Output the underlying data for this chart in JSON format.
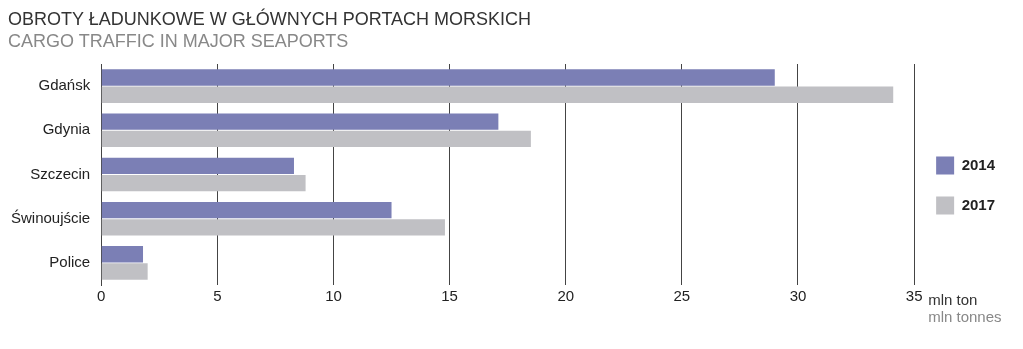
{
  "chart_data": {
    "type": "bar",
    "orientation": "horizontal",
    "title": "OBROTY ŁADUNKOWE W GŁÓWNYCH PORTACH MORSKICH",
    "subtitle": "CARGO TRAFFIC IN MAJOR SEAPORTS",
    "xlabel": "mln ton",
    "annotations": [
      "mln tonnes"
    ],
    "categories": [
      "Gdańsk",
      "Gdynia",
      "Szczecin",
      "Świnoujście",
      "Police"
    ],
    "series": [
      {
        "name": "2014",
        "color": "#7b7fb5",
        "values": [
          29.0,
          17.1,
          8.3,
          12.5,
          1.8
        ]
      },
      {
        "name": "2017",
        "color": "#c0c0c4",
        "values": [
          34.1,
          18.5,
          8.8,
          14.8,
          2.0
        ]
      }
    ],
    "xlim": [
      0,
      35
    ],
    "xticks": [
      0,
      5,
      10,
      15,
      20,
      25,
      30,
      35
    ],
    "grid": "x",
    "legend": "right"
  }
}
